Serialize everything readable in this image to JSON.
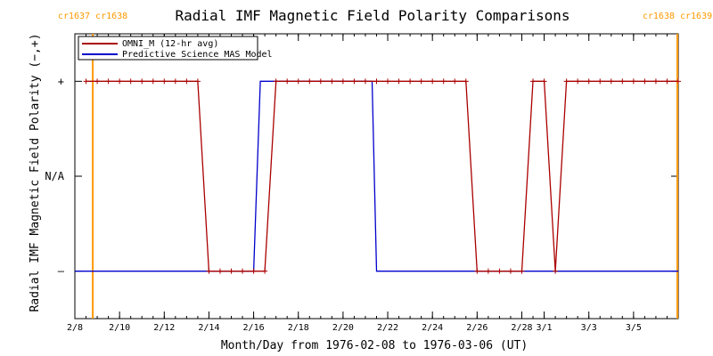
{
  "chart_data": {
    "type": "line",
    "title": "Radial IMF Magnetic Field Polarity Comparisons",
    "xlabel": "Month/Day from 1976-02-08 to 1976-03-06 (UT)",
    "ylabel": "Radial IMF Magnetic Field Polarity (−,+)",
    "x_range_days": [
      0,
      27
    ],
    "y_range": [
      -1.5,
      1.5
    ],
    "x_ticks": [
      {
        "day": 0,
        "label": "2/8"
      },
      {
        "day": 2,
        "label": "2/10"
      },
      {
        "day": 4,
        "label": "2/12"
      },
      {
        "day": 6,
        "label": "2/14"
      },
      {
        "day": 8,
        "label": "2/16"
      },
      {
        "day": 10,
        "label": "2/18"
      },
      {
        "day": 12,
        "label": "2/20"
      },
      {
        "day": 14,
        "label": "2/22"
      },
      {
        "day": 16,
        "label": "2/24"
      },
      {
        "day": 18,
        "label": "2/26"
      },
      {
        "day": 20,
        "label": "2/28"
      },
      {
        "day": 21,
        "label": "3/1"
      },
      {
        "day": 23,
        "label": "3/3"
      },
      {
        "day": 25,
        "label": "3/5"
      }
    ],
    "y_ticks": [
      {
        "value": 1,
        "label": "+"
      },
      {
        "value": 0,
        "label": "N/A"
      },
      {
        "value": -1,
        "label": "–"
      }
    ],
    "carrington_markers": [
      {
        "day": 0.8,
        "left": "cr1637",
        "right": "cr1638"
      },
      {
        "day": 27.0,
        "left": "cr1638",
        "right": "cr1639"
      }
    ],
    "series": [
      {
        "name": "OMNI_M (12-hr avg)",
        "color": "#aa0000",
        "markers": true,
        "points": [
          [
            0.5,
            1
          ],
          [
            1.0,
            1
          ],
          [
            1.5,
            1
          ],
          [
            2.0,
            1
          ],
          [
            2.5,
            1
          ],
          [
            3.0,
            1
          ],
          [
            3.5,
            1
          ],
          [
            4.0,
            1
          ],
          [
            4.5,
            1
          ],
          [
            5.0,
            1
          ],
          [
            5.5,
            1
          ],
          [
            6.0,
            -1
          ],
          [
            6.5,
            -1
          ],
          [
            7.0,
            -1
          ],
          [
            7.5,
            -1
          ],
          [
            8.0,
            -1
          ],
          [
            8.5,
            -1
          ],
          [
            9.0,
            1
          ],
          [
            9.5,
            1
          ],
          [
            10.0,
            1
          ],
          [
            10.5,
            1
          ],
          [
            11.0,
            1
          ],
          [
            11.5,
            1
          ],
          [
            12.0,
            1
          ],
          [
            12.5,
            1
          ],
          [
            13.0,
            1
          ],
          [
            13.5,
            1
          ],
          [
            14.0,
            1
          ],
          [
            14.5,
            1
          ],
          [
            15.0,
            1
          ],
          [
            15.5,
            1
          ],
          [
            16.0,
            1
          ],
          [
            16.5,
            1
          ],
          [
            17.0,
            1
          ],
          [
            17.5,
            1
          ],
          [
            18.0,
            -1
          ],
          [
            18.5,
            -1
          ],
          [
            19.0,
            -1
          ],
          [
            19.5,
            -1
          ],
          [
            20.0,
            -1
          ],
          [
            20.5,
            1
          ],
          [
            21.0,
            1
          ],
          [
            21.5,
            -1
          ],
          [
            22.0,
            1
          ],
          [
            22.5,
            1
          ],
          [
            23.0,
            1
          ],
          [
            23.5,
            1
          ],
          [
            24.0,
            1
          ],
          [
            24.5,
            1
          ],
          [
            25.0,
            1
          ],
          [
            25.5,
            1
          ],
          [
            26.0,
            1
          ],
          [
            26.5,
            1
          ],
          [
            27.0,
            1
          ]
        ]
      },
      {
        "name": "Predictive Science MAS Model",
        "color": "#0000cc",
        "markers": false,
        "points": [
          [
            0.0,
            -1
          ],
          [
            8.0,
            -1
          ],
          [
            8.3,
            1
          ],
          [
            13.3,
            1
          ],
          [
            13.5,
            -1
          ],
          [
            27.0,
            -1
          ]
        ]
      }
    ]
  }
}
